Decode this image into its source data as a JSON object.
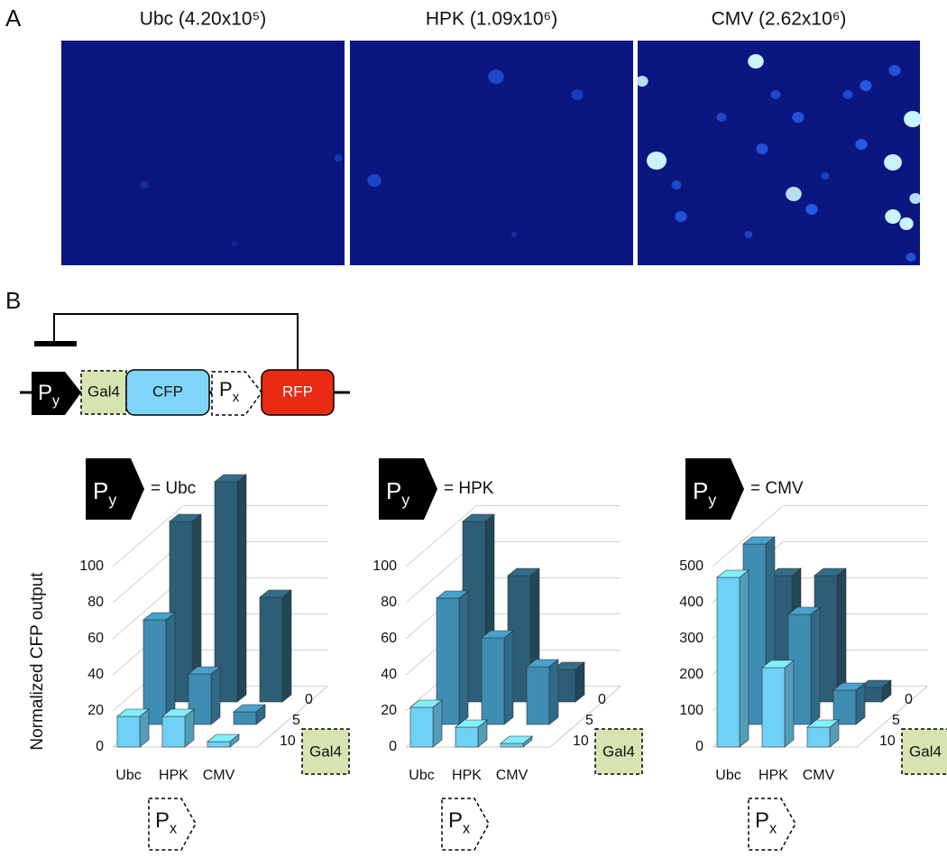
{
  "panel_a": {
    "label": "A",
    "images": [
      {
        "title": "Ubc (4.20x10⁵)"
      },
      {
        "title": "HPK (1.09x10⁶)"
      },
      {
        "title": "CMV (2.62x10⁶)"
      }
    ]
  },
  "panel_b": {
    "label": "B",
    "construct": {
      "promoter_y": {
        "main": "P",
        "sub": "y"
      },
      "gal4": "Gal4",
      "cfp": "CFP",
      "promoter_x": {
        "main": "P",
        "sub": "x"
      },
      "rfp": "RFP"
    }
  },
  "chart_data": [
    {
      "type": "bar3d",
      "header": "= Ubc",
      "promoter": {
        "main": "P",
        "sub": "y"
      },
      "ylabel": "Normalized CFP output",
      "categories": [
        "Ubc",
        "HPK",
        "CMV"
      ],
      "x_promoter": {
        "main": "P",
        "sub": "x"
      },
      "depth_label": "Gal4",
      "series": [
        {
          "name": "0",
          "color": "#2c5f77",
          "values": [
            100,
            122,
            58
          ]
        },
        {
          "name": "5",
          "color": "#3e8db3",
          "values": [
            58,
            28,
            7
          ]
        },
        {
          "name": "10",
          "color": "#6fd1f7",
          "values": [
            17,
            17,
            3
          ]
        }
      ],
      "ylim": [
        0,
        100
      ],
      "yticks": [
        0,
        20,
        40,
        60,
        80,
        100
      ],
      "grid": true
    },
    {
      "type": "bar3d",
      "header": "= HPK",
      "promoter": {
        "main": "P",
        "sub": "y"
      },
      "categories": [
        "Ubc",
        "HPK",
        "CMV"
      ],
      "x_promoter": {
        "main": "P",
        "sub": "x"
      },
      "depth_label": "Gal4",
      "series": [
        {
          "name": "0",
          "color": "#2c5f77",
          "values": [
            100,
            70,
            18
          ]
        },
        {
          "name": "5",
          "color": "#3e8db3",
          "values": [
            70,
            48,
            32
          ]
        },
        {
          "name": "10",
          "color": "#6fd1f7",
          "values": [
            22,
            11,
            2
          ]
        }
      ],
      "ylim": [
        0,
        100
      ],
      "yticks": [
        0,
        20,
        40,
        60,
        80,
        100
      ],
      "grid": true
    },
    {
      "type": "bar3d",
      "header": "= CMV",
      "promoter": {
        "main": "P",
        "sub": "y"
      },
      "categories": [
        "Ubc",
        "HPK",
        "CMV"
      ],
      "x_promoter": {
        "main": "P",
        "sub": "x"
      },
      "depth_label": "Gal4",
      "series": [
        {
          "name": "0",
          "color": "#2c5f77",
          "values": [
            350,
            350,
            40
          ]
        },
        {
          "name": "5",
          "color": "#3e8db3",
          "values": [
            500,
            305,
            95
          ]
        },
        {
          "name": "10",
          "color": "#6fd1f7",
          "values": [
            470,
            220,
            55
          ]
        }
      ],
      "ylim": [
        0,
        500
      ],
      "yticks": [
        0,
        100,
        200,
        300,
        400,
        500
      ],
      "grid": true
    }
  ]
}
